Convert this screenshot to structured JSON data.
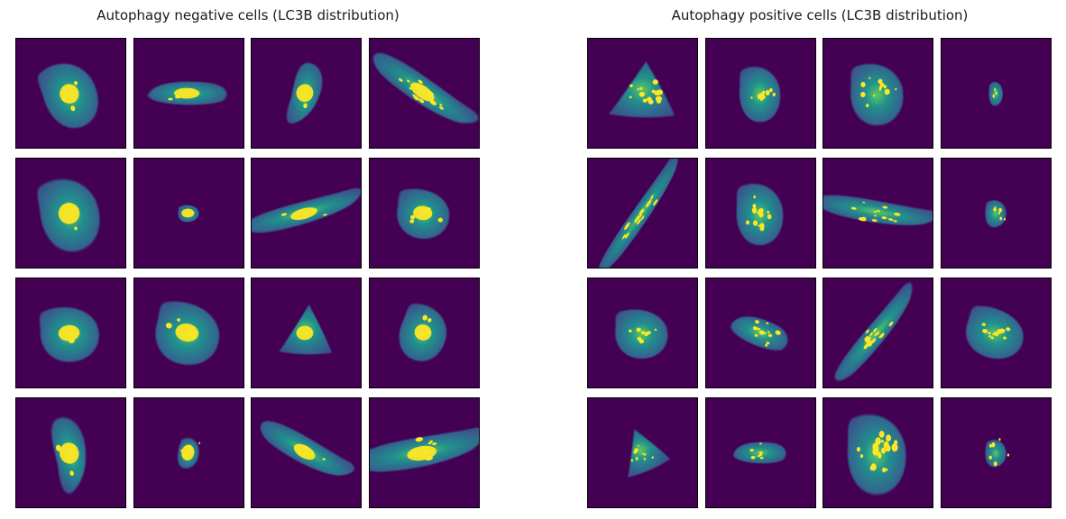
{
  "panels": [
    {
      "title": "Autophagy negative cells (LC3B distribution)",
      "cells": [
        {
          "shape": "blob",
          "rot": -20,
          "sx": 0.9,
          "sy": 1.1,
          "spots": 4
        },
        {
          "shape": "oval",
          "rot": 0,
          "sx": 1.2,
          "sy": 0.6,
          "spots": 2
        },
        {
          "shape": "drop",
          "rot": 10,
          "sx": 0.8,
          "sy": 1.0,
          "spots": 1
        },
        {
          "shape": "long",
          "rot": 35,
          "sx": 1.3,
          "sy": 0.7,
          "spots": 14
        },
        {
          "shape": "blob",
          "rot": -10,
          "sx": 1.0,
          "sy": 1.2,
          "spots": 2
        },
        {
          "shape": "small",
          "rot": 0,
          "sx": 0.6,
          "sy": 0.5,
          "spots": 1
        },
        {
          "shape": "long",
          "rot": -15,
          "sx": 1.3,
          "sy": 0.6,
          "spots": 2
        },
        {
          "shape": "blob",
          "rot": 5,
          "sx": 0.9,
          "sy": 0.8,
          "spots": 6
        },
        {
          "shape": "blob",
          "rot": -5,
          "sx": 1.0,
          "sy": 0.9,
          "spots": 3
        },
        {
          "shape": "blob",
          "rot": 10,
          "sx": 1.1,
          "sy": 1.0,
          "spots": 4
        },
        {
          "shape": "tri",
          "rot": 0,
          "sx": 0.8,
          "sy": 0.8,
          "spots": 1
        },
        {
          "shape": "blob",
          "rot": 20,
          "sx": 0.8,
          "sy": 0.9,
          "spots": 5
        },
        {
          "shape": "drop",
          "rot": -15,
          "sx": 0.9,
          "sy": 1.2,
          "spots": 4
        },
        {
          "shape": "small",
          "rot": 10,
          "sx": 0.6,
          "sy": 0.9,
          "spots": 6
        },
        {
          "shape": "long",
          "rot": 30,
          "sx": 1.1,
          "sy": 0.7,
          "spots": 3
        },
        {
          "shape": "long",
          "rot": -10,
          "sx": 1.4,
          "sy": 0.8,
          "spots": 10
        }
      ]
    },
    {
      "title": "Autophagy positive cells (LC3B distribution)",
      "cells": [
        {
          "shape": "tri",
          "rot": 0,
          "sx": 1.0,
          "sy": 0.9,
          "spots": 14
        },
        {
          "shape": "blob",
          "rot": 0,
          "sx": 0.7,
          "sy": 0.9,
          "spots": 12
        },
        {
          "shape": "blob",
          "rot": 0,
          "sx": 0.9,
          "sy": 1.0,
          "spots": 12
        },
        {
          "shape": "small",
          "rot": 0,
          "sx": 0.4,
          "sy": 0.7,
          "spots": 4
        },
        {
          "shape": "long",
          "rot": -55,
          "sx": 1.5,
          "sy": 0.45,
          "spots": 14
        },
        {
          "shape": "blob",
          "rot": 0,
          "sx": 0.8,
          "sy": 1.0,
          "spots": 16
        },
        {
          "shape": "long",
          "rot": 10,
          "sx": 1.3,
          "sy": 0.6,
          "spots": 14
        },
        {
          "shape": "small",
          "rot": 0,
          "sx": 0.6,
          "sy": 0.8,
          "spots": 6
        },
        {
          "shape": "blob",
          "rot": 0,
          "sx": 0.9,
          "sy": 0.8,
          "spots": 10
        },
        {
          "shape": "oval",
          "rot": 20,
          "sx": 0.9,
          "sy": 0.7,
          "spots": 14
        },
        {
          "shape": "long",
          "rot": -50,
          "sx": 1.3,
          "sy": 0.55,
          "spots": 16
        },
        {
          "shape": "blob",
          "rot": 15,
          "sx": 1.0,
          "sy": 0.8,
          "spots": 12
        },
        {
          "shape": "tri",
          "rot": -25,
          "sx": 0.7,
          "sy": 0.7,
          "spots": 10
        },
        {
          "shape": "oval",
          "rot": 0,
          "sx": 0.8,
          "sy": 0.55,
          "spots": 8
        },
        {
          "shape": "blob",
          "rot": 0,
          "sx": 1.0,
          "sy": 1.3,
          "spots": 22
        },
        {
          "shape": "small",
          "rot": 0,
          "sx": 0.6,
          "sy": 0.8,
          "spots": 6
        }
      ]
    }
  ],
  "colors": {
    "background": "#440154",
    "cytoplasm": "#3b528b",
    "cytoplasm_light": "#31688e",
    "mid": "#21918c",
    "bright": "#5ec962",
    "spot": "#fde725",
    "tile_border": "#000000"
  }
}
